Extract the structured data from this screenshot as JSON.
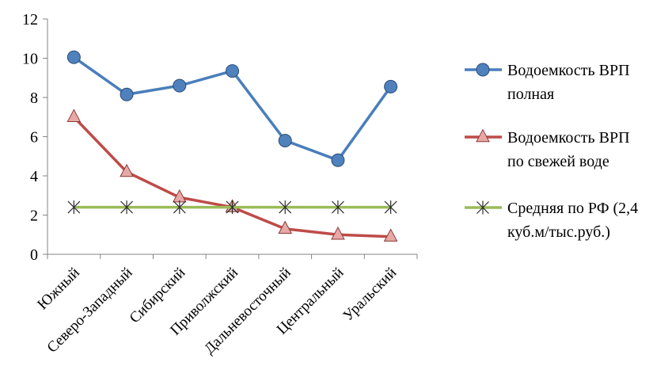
{
  "chart_data": {
    "type": "line",
    "categories": [
      "Южный",
      "Северо-Западный",
      "Сибирский",
      "Приволжский",
      "Дальневосточный",
      "Центральный",
      "Уральский"
    ],
    "ylim": [
      0,
      12
    ],
    "yticks": [
      0,
      2,
      4,
      6,
      8,
      10,
      12
    ],
    "grid": false,
    "legend_position": "right",
    "series": [
      {
        "name_lines": [
          "Водоемкость  ВРП",
          "полная"
        ],
        "color": "#4a7ebb",
        "marker": "circle",
        "marker_fill": "#4f81bd",
        "marker_stroke": "#2c4d75",
        "values": [
          10.05,
          8.15,
          8.6,
          9.35,
          5.8,
          4.8,
          8.55
        ]
      },
      {
        "name_lines": [
          "Водоемкость  ВРП",
          "по свежей воде"
        ],
        "color": "#be4b48",
        "marker": "triangle",
        "marker_fill": "#e6a9a6",
        "marker_stroke": "#8c3836",
        "values": [
          7.0,
          4.2,
          2.9,
          2.4,
          1.3,
          1.0,
          0.9
        ]
      },
      {
        "name_lines": [
          "Средняя по РФ (2,4",
          "куб.м/тыс.руб.)"
        ],
        "color": "#9bbb59",
        "marker": "star",
        "marker_stroke": "#2b2b2b",
        "values": [
          2.4,
          2.4,
          2.4,
          2.4,
          2.4,
          2.4,
          2.4
        ]
      }
    ]
  }
}
